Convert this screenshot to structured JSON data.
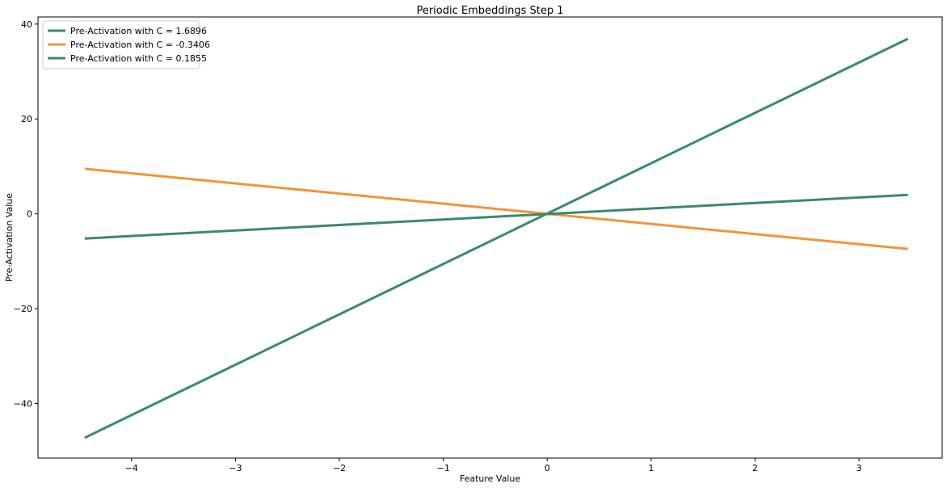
{
  "chart_data": {
    "type": "line",
    "title": "Periodic Embeddings Step 1",
    "xlabel": "Feature Value",
    "ylabel": "Pre-Activation Value",
    "xlim": [
      -4.9,
      3.8
    ],
    "ylim": [
      -51.5,
      41.5
    ],
    "xticks": [
      -4,
      -3,
      -2,
      -1,
      0,
      1,
      2,
      3
    ],
    "xtick_labels": [
      "−4",
      "−3",
      "−2",
      "−1",
      "0",
      "1",
      "2",
      "3"
    ],
    "yticks": [
      -40,
      -20,
      0,
      20,
      40
    ],
    "ytick_labels": [
      "−40",
      "−20",
      "0",
      "20",
      "40"
    ],
    "grid": false,
    "legend_position": "top-left",
    "series": [
      {
        "name": "Pre-Activation with C = 1.6896",
        "color": "#3a8a6c",
        "x": [
          -4.45,
          3.47
        ],
        "y": [
          -47.2,
          36.9
        ]
      },
      {
        "name": "Pre-Activation with C = -0.3406",
        "color": "#f0953a",
        "x": [
          -4.45,
          3.47
        ],
        "y": [
          9.5,
          -7.4
        ]
      },
      {
        "name": "Pre-Activation with C = 0.1855",
        "color": "#3a8a6c",
        "x": [
          -4.45,
          3.47
        ],
        "y": [
          -5.2,
          4.0
        ]
      }
    ]
  }
}
